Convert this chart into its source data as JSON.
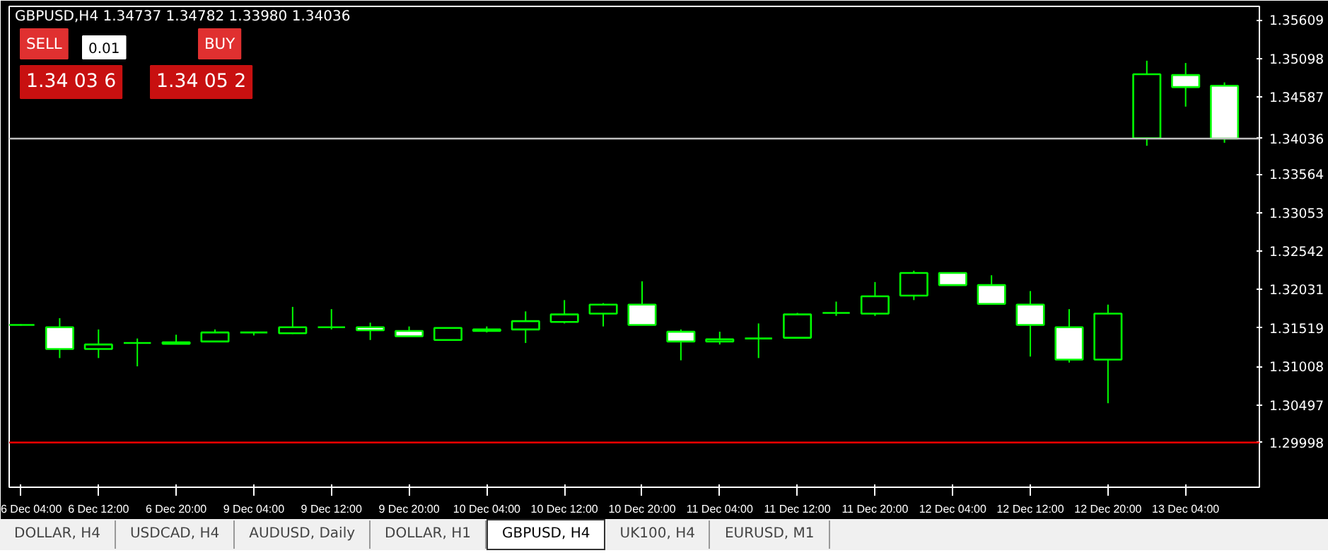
{
  "chart_data": {
    "type": "candlestick",
    "title": "GBPUSD,H4  1.34737 1.34782 1.33980 1.34036",
    "categories": [
      "6 Dec 04:00",
      null,
      "6 Dec 12:00",
      null,
      "6 Dec 20:00",
      null,
      "9 Dec 04:00",
      null,
      "9 Dec 12:00",
      null,
      "9 Dec 20:00",
      null,
      "10 Dec 04:00",
      null,
      "10 Dec 12:00",
      null,
      "10 Dec 20:00",
      null,
      "11 Dec 04:00",
      null,
      "11 Dec 12:00",
      null,
      "11 Dec 20:00",
      null,
      "12 Dec 04:00",
      null,
      "12 Dec 12:00",
      null,
      "12 Dec 20:00",
      null,
      "13 Dec 04:00",
      null
    ],
    "ohlc": [
      [
        1.3156,
        1.3157,
        1.3155,
        1.3156
      ],
      [
        1.3153,
        1.3165,
        1.3112,
        1.3124
      ],
      [
        1.3124,
        1.315,
        1.3112,
        1.313
      ],
      [
        1.3132,
        1.3138,
        1.3101,
        1.3132
      ],
      [
        1.3131,
        1.3143,
        1.3131,
        1.3133
      ],
      [
        1.3134,
        1.315,
        1.3133,
        1.3146
      ],
      [
        1.3146,
        1.3147,
        1.3142,
        1.3146
      ],
      [
        1.3145,
        1.318,
        1.3144,
        1.3153
      ],
      [
        1.3153,
        1.3177,
        1.315,
        1.3153
      ],
      [
        1.3153,
        1.3159,
        1.3136,
        1.3149
      ],
      [
        1.3148,
        1.3154,
        1.3141,
        1.3141
      ],
      [
        1.3136,
        1.3152,
        1.3136,
        1.3152
      ],
      [
        1.3148,
        1.3154,
        1.3146,
        1.315
      ],
      [
        1.315,
        1.3174,
        1.3132,
        1.3161
      ],
      [
        1.316,
        1.3189,
        1.3158,
        1.317
      ],
      [
        1.3171,
        1.3185,
        1.3154,
        1.3183
      ],
      [
        1.3183,
        1.3214,
        1.3156,
        1.3156
      ],
      [
        1.3147,
        1.315,
        1.3109,
        1.3134
      ],
      [
        1.3134,
        1.3147,
        1.313,
        1.3137
      ],
      [
        1.3138,
        1.3158,
        1.3112,
        1.3138
      ],
      [
        1.3139,
        1.3172,
        1.3139,
        1.317
      ],
      [
        1.3172,
        1.3187,
        1.3168,
        1.3172
      ],
      [
        1.3171,
        1.3213,
        1.3168,
        1.3194
      ],
      [
        1.3195,
        1.3228,
        1.3189,
        1.3225
      ],
      [
        1.3225,
        1.3225,
        1.3209,
        1.3209
      ],
      [
        1.3209,
        1.3222,
        1.3184,
        1.3184
      ],
      [
        1.3183,
        1.3201,
        1.3114,
        1.3156
      ],
      [
        1.3153,
        1.3177,
        1.3106,
        1.311
      ],
      [
        1.311,
        1.3183,
        1.3052,
        1.3171
      ],
      [
        1.3404,
        1.3507,
        1.3394,
        1.3489
      ],
      [
        1.3488,
        1.3504,
        1.3446,
        1.3472
      ],
      [
        1.34737,
        1.34782,
        1.3398,
        1.34036
      ]
    ],
    "color": "#00ff00",
    "ylim": [
      1.29404,
      1.35792
    ],
    "yticks": [
      {
        "value": 1.35609,
        "label": "1.35609"
      },
      {
        "value": 1.35098,
        "label": "1.35098"
      },
      {
        "value": 1.34587,
        "label": "1.34587"
      },
      {
        "value": 1.33564,
        "label": "1.33564"
      },
      {
        "value": 1.33053,
        "label": "1.33053"
      },
      {
        "value": 1.32542,
        "label": "1.32542"
      },
      {
        "value": 1.32031,
        "label": "1.32031"
      },
      {
        "value": 1.31519,
        "label": "1.31519"
      },
      {
        "value": 1.31008,
        "label": "1.31008"
      },
      {
        "value": 1.30497,
        "label": "1.30497"
      }
    ],
    "ref_lines": [
      {
        "axis": "y",
        "value": 1.34036,
        "label": "1.34036",
        "color": "#c0c0c0"
      },
      {
        "axis": "y",
        "value": 1.29998,
        "label": "1.29998",
        "color": "#ff0000"
      }
    ],
    "grid": false,
    "annotations": [
      "SELL",
      "0.01",
      "BUY",
      "1.34 03 6",
      "1.34 05 2",
      "DOLLAR, H4",
      "USDCAD, H4",
      "AUDUSD, Daily",
      "DOLLAR, H1",
      "GBPUSD, H4",
      "UK100, H4",
      "EURUSD, M1"
    ]
  }
}
